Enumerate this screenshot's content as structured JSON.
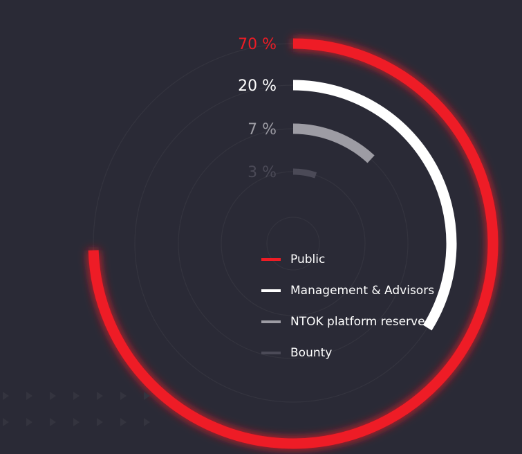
{
  "colors": {
    "background": "#2a2a36",
    "guide_ring": "#34343f",
    "chevron": "#34343f"
  },
  "chart_data": {
    "type": "radial-bar",
    "series": [
      {
        "name": "Public",
        "value": 70,
        "label": "70 %",
        "color": "#ee1c25",
        "label_color": "#ee1c25"
      },
      {
        "name": "Management & Advisors",
        "value": 20,
        "label": "20 %",
        "color": "#ffffff",
        "label_color": "#ffffff"
      },
      {
        "name": "NTOK platform reserve",
        "value": 7,
        "label": "7 %",
        "color": "#9d9ca4",
        "label_color": "#9d9ca4"
      },
      {
        "name": "Bounty",
        "value": 3,
        "label": "3 %",
        "color": "#4b4a57",
        "label_color": "#4b4a57"
      }
    ],
    "legend_placement": "center",
    "grid": false
  }
}
